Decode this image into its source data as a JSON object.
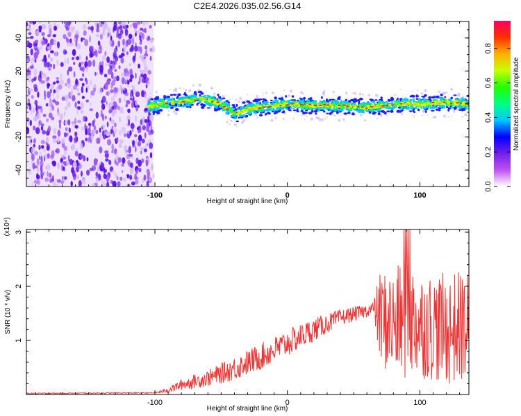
{
  "title": "C2E4.2026.035.02.56.G14",
  "chart_data": [
    {
      "type": "heatmap",
      "name": "spectrogram",
      "xlabel": "Height of straight line (km)",
      "ylabel": "Frequency (Hz)",
      "xlim": [
        -197,
        137
      ],
      "ylim": [
        -50,
        50
      ],
      "xticks": [
        -100,
        0,
        100
      ],
      "xtick_labels": [
        "-100",
        "0",
        "100"
      ],
      "yticks": [
        -40,
        -20,
        0,
        20,
        40
      ],
      "ytick_labels": [
        "-40",
        "-20",
        "0",
        "20",
        "40"
      ],
      "noise_region": {
        "x_from": -197,
        "x_to": -101,
        "y_from": -50,
        "y_to": 50,
        "color": "#7b2ff5"
      },
      "signal_track": {
        "x": [
          -105,
          -95,
          -85,
          -75,
          -65,
          -58,
          -50,
          -45,
          -40,
          -35,
          -30,
          -20,
          -10,
          0,
          20,
          40,
          60,
          80,
          100,
          120,
          137
        ],
        "y": [
          -2,
          0,
          1,
          2,
          3,
          2,
          0,
          -3,
          -6,
          -5,
          -3,
          -2,
          -1,
          0,
          -1,
          -1,
          -2,
          0,
          0,
          1,
          0
        ]
      },
      "colorbar": {
        "label": "Normalized spectral amplitude",
        "min": 0,
        "max": 0.96,
        "ticks": [
          0.0,
          0.2,
          0.4,
          0.6,
          0.8
        ],
        "tick_labels": [
          "0.0",
          "0.2",
          "0.4",
          "0.6",
          "0.8"
        ],
        "colors": [
          "#ffffff",
          "#c050f0",
          "#7020e8",
          "#0000ff",
          "#00c8ff",
          "#00ff80",
          "#20ff00",
          "#c8ff00",
          "#ffb000",
          "#ff3000",
          "#ff0060"
        ]
      }
    },
    {
      "type": "line",
      "name": "snr",
      "xlabel": "Height of straight line (km)",
      "ylabel": "SNR (10 * v/v)",
      "y_multiplier": "(x10⁴)",
      "xlim": [
        -197,
        137
      ],
      "ylim": [
        0,
        3.05
      ],
      "xticks": [
        -100,
        0,
        100
      ],
      "xtick_labels": [
        "-100",
        "0",
        "100"
      ],
      "yticks": [
        1,
        2,
        3
      ],
      "ytick_labels": [
        "1",
        "2",
        "3"
      ],
      "color": "#ee3333",
      "envelope": {
        "x": [
          -197,
          -100,
          -90,
          -80,
          -60,
          -40,
          -20,
          0,
          20,
          40,
          60,
          65,
          70,
          80,
          90,
          100,
          110,
          120,
          130,
          137
        ],
        "mean": [
          0.02,
          0.03,
          0.08,
          0.18,
          0.3,
          0.48,
          0.7,
          0.95,
          1.2,
          1.42,
          1.55,
          1.6,
          1.4,
          1.3,
          1.4,
          1.3,
          1.25,
          1.2,
          1.25,
          1.25
        ],
        "spread": [
          0.01,
          0.01,
          0.05,
          0.1,
          0.15,
          0.22,
          0.25,
          0.25,
          0.22,
          0.15,
          0.12,
          0.12,
          0.9,
          1.0,
          1.15,
          1.0,
          1.0,
          1.05,
          1.05,
          1.05
        ]
      }
    }
  ]
}
